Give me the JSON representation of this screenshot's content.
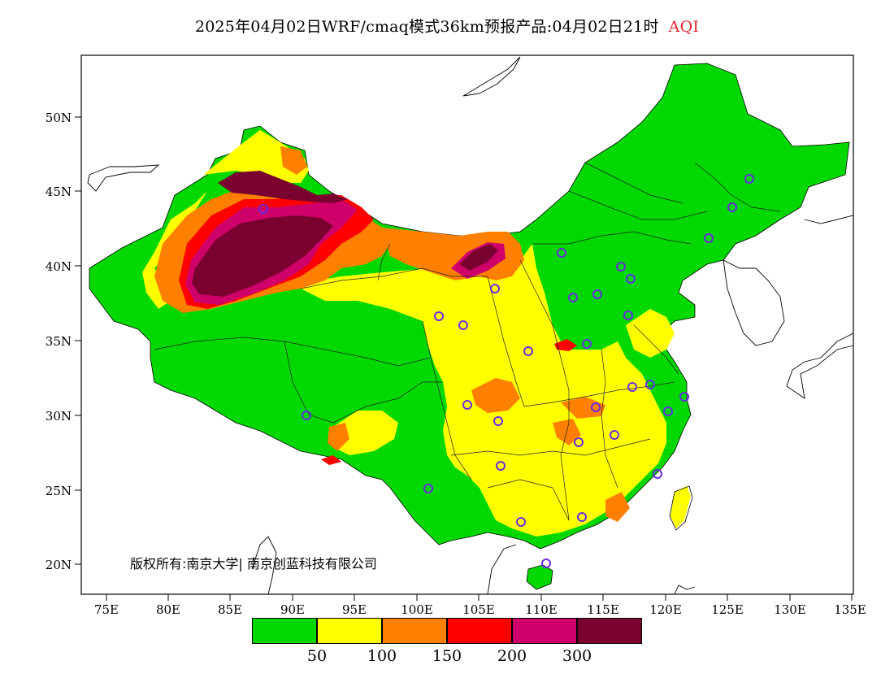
{
  "header": {
    "title": "2025年04月02日WRF/cmaq模式36km预报产品:04月02日21时",
    "variable": "AQI"
  },
  "axes": {
    "lat_labels": [
      "50N",
      "45N",
      "40N",
      "35N",
      "30N",
      "25N",
      "20N"
    ],
    "lon_labels": [
      "75E",
      "80E",
      "85E",
      "90E",
      "95E",
      "100E",
      "105E",
      "110E",
      "115E",
      "120E",
      "125E",
      "130E",
      "135E"
    ],
    "lat_range": [
      18,
      54
    ],
    "lon_range": [
      73,
      135
    ]
  },
  "copyright": "版权所有:南京大学| 南京创蓝科技有限公司",
  "legend": {
    "colors": [
      "#00d800",
      "#ffff00",
      "#ff8000",
      "#ff0000",
      "#d0006a",
      "#7a0030"
    ],
    "ticks": [
      "50",
      "100",
      "150",
      "200",
      "300"
    ]
  },
  "colors": {
    "good": "#00d800",
    "moderate": "#ffff00",
    "usg": "#ff8000",
    "unhealthy": "#ff0000",
    "very_unhealthy": "#d0006a",
    "hazardous": "#7a0030",
    "station_marker": "#6a2de0",
    "title_accent": "#e0262e"
  }
}
